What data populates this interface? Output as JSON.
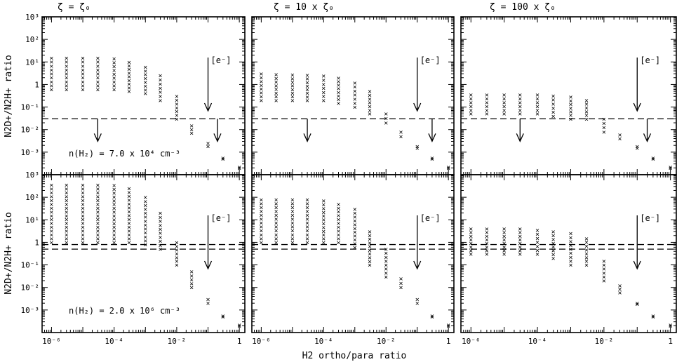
{
  "figure": {
    "xlabel": "H2 ortho/para ratio",
    "ylabel": "N2D+/N2H+ ratio",
    "electron_label": "[e⁻]",
    "column_titles": [
      "ζ = ζ₀",
      "ζ = 10 x ζ₀",
      "ζ = 100 x ζ₀"
    ],
    "row_labels": [
      "n(H₂) = 7.0 x 10⁴ cm⁻³",
      "n(H₂) = 2.0 x 10⁶ cm⁻³"
    ]
  },
  "chart_data": {
    "type": "scatter",
    "title": "",
    "xlabel": "H2 ortho/para ratio",
    "ylabel": "N2D+/N2H+ ratio",
    "xscale": "log",
    "yscale": "log",
    "xlim": [
      5e-07,
      1.5
    ],
    "ylim": [
      0.0001,
      1000
    ],
    "x_tick_labels": [
      "10⁻⁶",
      "10⁻⁴",
      "10⁻²",
      "1"
    ],
    "y_tick_labels": [
      "10⁻³",
      "10⁻²",
      "10⁻¹",
      "1",
      "10¹",
      "10²",
      "10³"
    ],
    "x": [
      1e-06,
      3e-06,
      1e-05,
      3e-05,
      0.0001,
      0.0003,
      0.001,
      0.003,
      0.01,
      0.03,
      0.1,
      0.3,
      1
    ],
    "electron_marker_x": 0.1,
    "panels": [
      {
        "column": "ζ = ζ₀",
        "row": "n(H₂) = 7.0 x 10⁴ cm⁻³",
        "ranges": [
          [
            0.6,
            15
          ],
          [
            0.6,
            15
          ],
          [
            0.6,
            15
          ],
          [
            0.6,
            15
          ],
          [
            0.6,
            14
          ],
          [
            0.5,
            10
          ],
          [
            0.4,
            6
          ],
          [
            0.2,
            2.5
          ],
          [
            0.03,
            0.3
          ],
          [
            0.007,
            0.015
          ],
          [
            0.0018,
            0.0025
          ],
          [
            0.0005,
            0.00055
          ],
          [
            0.0002,
            0.00022
          ]
        ],
        "threshold_lines": [
          0.03
        ],
        "upper_limit_arrows": [
          {
            "x": 3e-05,
            "y": 0.03
          },
          {
            "x": 0.2,
            "y": 0.03
          }
        ]
      },
      {
        "column": "ζ = 10 x ζ₀",
        "row": "n(H₂) = 7.0 x 10⁴ cm⁻³",
        "ranges": [
          [
            0.2,
            3
          ],
          [
            0.2,
            2.8
          ],
          [
            0.2,
            2.7
          ],
          [
            0.2,
            2.6
          ],
          [
            0.2,
            2.4
          ],
          [
            0.15,
            2
          ],
          [
            0.1,
            1.2
          ],
          [
            0.05,
            0.5
          ],
          [
            0.02,
            0.05
          ],
          [
            0.005,
            0.008
          ],
          [
            0.0015,
            0.0018
          ],
          [
            0.0005,
            0.00055
          ],
          [
            0.0002,
            0.00022
          ]
        ],
        "threshold_lines": [
          0.03
        ],
        "upper_limit_arrows": [
          {
            "x": 3e-05,
            "y": 0.03
          },
          {
            "x": 0.3,
            "y": 0.03
          }
        ]
      },
      {
        "column": "ζ = 100 x ζ₀",
        "row": "n(H₂) = 7.0 x 10⁴ cm⁻³",
        "ranges": [
          [
            0.05,
            0.35
          ],
          [
            0.05,
            0.35
          ],
          [
            0.05,
            0.35
          ],
          [
            0.05,
            0.35
          ],
          [
            0.05,
            0.35
          ],
          [
            0.04,
            0.32
          ],
          [
            0.03,
            0.28
          ],
          [
            0.03,
            0.2
          ],
          [
            0.008,
            0.03
          ],
          [
            0.004,
            0.006
          ],
          [
            0.0015,
            0.0018
          ],
          [
            0.0005,
            0.00055
          ],
          [
            0.0002,
            0.00022
          ]
        ],
        "threshold_lines": [
          0.03
        ],
        "upper_limit_arrows": [
          {
            "x": 3e-05,
            "y": 0.03
          },
          {
            "x": 0.2,
            "y": 0.03
          }
        ]
      },
      {
        "column": "ζ = ζ₀",
        "row": "n(H₂) = 2.0 x 10⁶ cm⁻³",
        "ranges": [
          [
            1,
            350
          ],
          [
            1,
            350
          ],
          [
            1,
            350
          ],
          [
            1,
            350
          ],
          [
            1,
            340
          ],
          [
            1,
            250
          ],
          [
            0.8,
            100
          ],
          [
            0.5,
            20
          ],
          [
            0.1,
            1
          ],
          [
            0.01,
            0.05
          ],
          [
            0.002,
            0.003
          ],
          [
            0.0005,
            0.00055
          ],
          [
            0.0002,
            0.00022
          ]
        ],
        "threshold_lines": [
          0.5,
          0.8
        ],
        "upper_limit_arrows": []
      },
      {
        "column": "ζ = 10 x ζ₀",
        "row": "n(H₂) = 2.0 x 10⁶ cm⁻³",
        "ranges": [
          [
            1,
            80
          ],
          [
            1,
            80
          ],
          [
            1,
            80
          ],
          [
            1,
            80
          ],
          [
            1,
            70
          ],
          [
            1,
            50
          ],
          [
            0.6,
            30
          ],
          [
            0.1,
            3
          ],
          [
            0.03,
            0.5
          ],
          [
            0.01,
            0.025
          ],
          [
            0.002,
            0.003
          ],
          [
            0.0005,
            0.00055
          ],
          [
            0.0002,
            0.00022
          ]
        ],
        "threshold_lines": [
          0.5,
          0.8
        ],
        "upper_limit_arrows": []
      },
      {
        "column": "ζ = 100 x ζ₀",
        "row": "n(H₂) = 2.0 x 10⁶ cm⁻³",
        "ranges": [
          [
            0.3,
            4
          ],
          [
            0.3,
            4
          ],
          [
            0.3,
            4
          ],
          [
            0.3,
            4
          ],
          [
            0.3,
            3.5
          ],
          [
            0.2,
            3
          ],
          [
            0.1,
            2.5
          ],
          [
            0.1,
            1.5
          ],
          [
            0.02,
            0.15
          ],
          [
            0.006,
            0.012
          ],
          [
            0.0018,
            0.002
          ],
          [
            0.0005,
            0.00055
          ],
          [
            0.0002,
            0.00022
          ]
        ],
        "threshold_lines": [
          0.5,
          0.8
        ],
        "upper_limit_arrows": []
      }
    ]
  }
}
